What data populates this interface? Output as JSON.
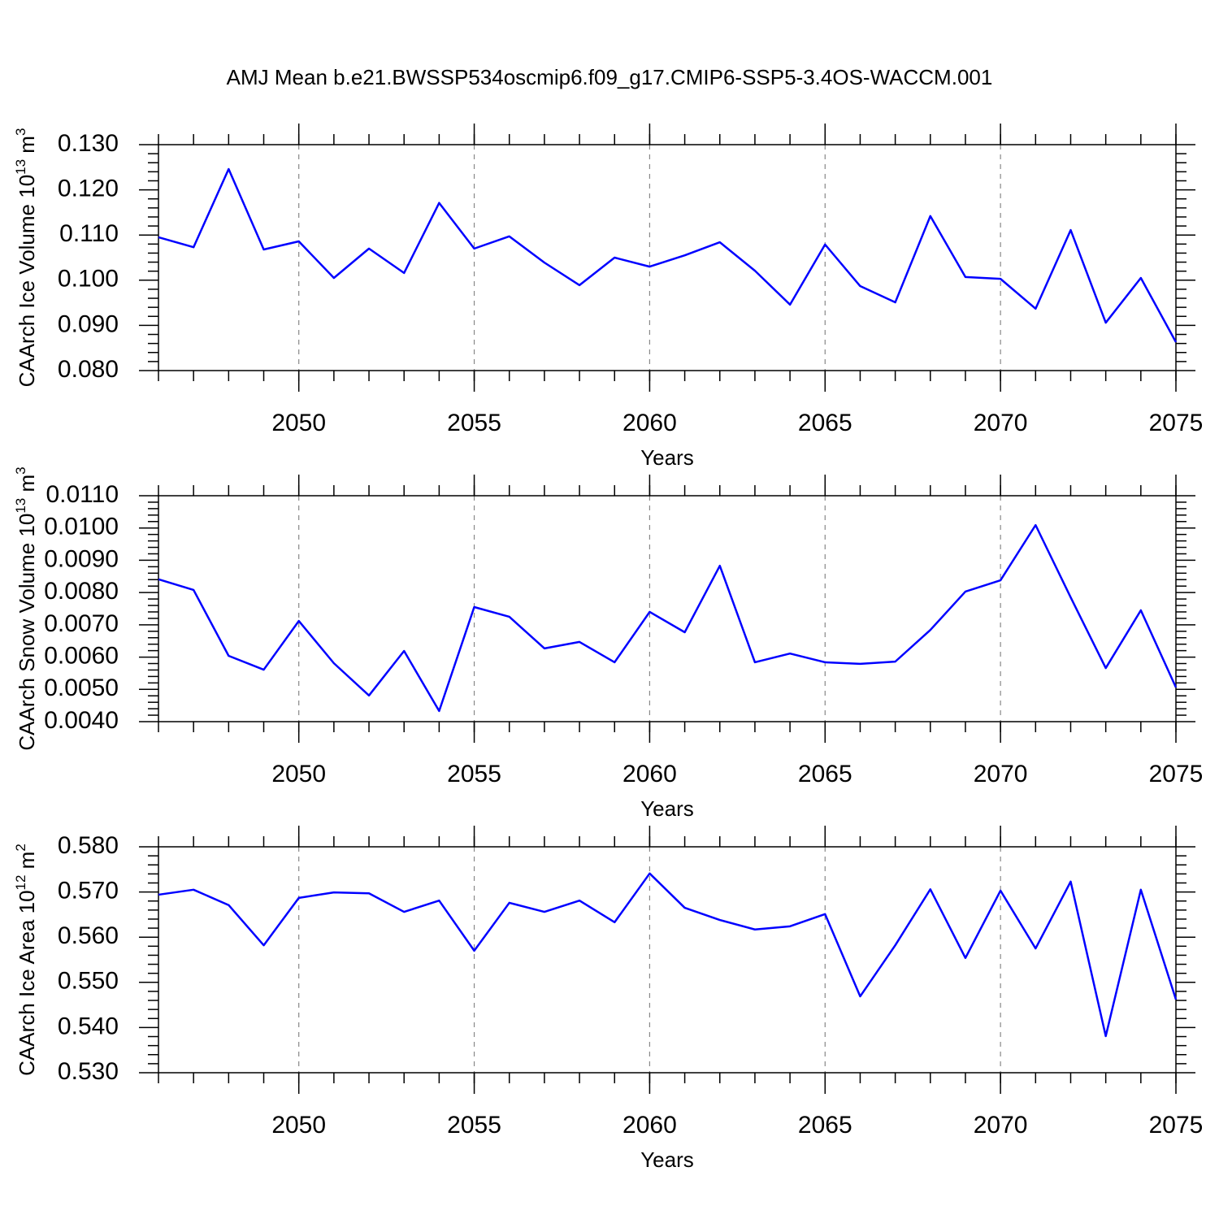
{
  "chart_data": [
    {
      "type": "line",
      "title": "AMJ Mean b.e21.BWSSP534oscmip6.f09_g17.CMIP6-SSP5-3.4OS-WACCM.001",
      "xlabel": "Years",
      "ylabel": [
        "CAArch Ice Volume 10",
        "13",
        " m",
        "3"
      ],
      "x": [
        2046,
        2047,
        2048,
        2049,
        2050,
        2051,
        2052,
        2053,
        2054,
        2055,
        2056,
        2057,
        2058,
        2059,
        2060,
        2061,
        2062,
        2063,
        2064,
        2065,
        2066,
        2067,
        2068,
        2069,
        2070,
        2071,
        2072,
        2073,
        2074,
        2075
      ],
      "values": [
        0.1095,
        0.1073,
        0.1246,
        0.1068,
        0.1086,
        0.1005,
        0.107,
        0.1016,
        0.1171,
        0.107,
        0.1097,
        0.1039,
        0.0989,
        0.105,
        0.103,
        0.1055,
        0.1084,
        0.1021,
        0.0946,
        0.1079,
        0.0987,
        0.0951,
        0.1142,
        0.1007,
        0.1003,
        0.0937,
        0.1111,
        0.0906,
        0.1005,
        0.0863
      ],
      "color": "#0000ff",
      "xlim": [
        2046,
        2075
      ],
      "xticks": [
        2050,
        2055,
        2060,
        2065,
        2070,
        2075
      ],
      "ylim": [
        0.08,
        0.13
      ],
      "yticks": [
        {
          "value": 0.08,
          "label": "0.080"
        },
        {
          "value": 0.09,
          "label": "0.090"
        },
        {
          "value": 0.1,
          "label": "0.100"
        },
        {
          "value": 0.11,
          "label": "0.110"
        },
        {
          "value": 0.12,
          "label": "0.120"
        },
        {
          "value": 0.13,
          "label": "0.130"
        }
      ],
      "grid": "x-dashed"
    },
    {
      "type": "line",
      "xlabel": "Years",
      "ylabel": [
        "CAArch Snow Volume 10",
        "13",
        " m",
        "3"
      ],
      "x": [
        2046,
        2047,
        2048,
        2049,
        2050,
        2051,
        2052,
        2053,
        2054,
        2055,
        2056,
        2057,
        2058,
        2059,
        2060,
        2061,
        2062,
        2063,
        2064,
        2065,
        2066,
        2067,
        2068,
        2069,
        2070,
        2071,
        2072,
        2073,
        2074,
        2075
      ],
      "values": [
        0.00841,
        0.00808,
        0.00604,
        0.00561,
        0.00712,
        0.00581,
        0.00481,
        0.00619,
        0.00433,
        0.00755,
        0.00725,
        0.00627,
        0.00647,
        0.00584,
        0.0074,
        0.00677,
        0.00883,
        0.00584,
        0.00611,
        0.00584,
        0.00579,
        0.00586,
        0.00684,
        0.00803,
        0.00838,
        0.01009,
        0.00785,
        0.00566,
        0.00745,
        0.00506
      ],
      "color": "#0000ff",
      "xlim": [
        2046,
        2075
      ],
      "xticks": [
        2050,
        2055,
        2060,
        2065,
        2070,
        2075
      ],
      "ylim": [
        0.004,
        0.011
      ],
      "yticks": [
        {
          "value": 0.004,
          "label": "0.0040"
        },
        {
          "value": 0.005,
          "label": "0.0050"
        },
        {
          "value": 0.006,
          "label": "0.0060"
        },
        {
          "value": 0.007,
          "label": "0.0070"
        },
        {
          "value": 0.008,
          "label": "0.0080"
        },
        {
          "value": 0.009,
          "label": "0.0090"
        },
        {
          "value": 0.01,
          "label": "0.0100"
        },
        {
          "value": 0.011,
          "label": "0.0110"
        }
      ],
      "grid": "x-dashed"
    },
    {
      "type": "line",
      "xlabel": "Years",
      "ylabel": [
        "CAArch Ice Area 10",
        "12",
        " m",
        "2"
      ],
      "x": [
        2046,
        2047,
        2048,
        2049,
        2050,
        2051,
        2052,
        2053,
        2054,
        2055,
        2056,
        2057,
        2058,
        2059,
        2060,
        2061,
        2062,
        2063,
        2064,
        2065,
        2066,
        2067,
        2068,
        2069,
        2070,
        2071,
        2072,
        2073,
        2074,
        2075
      ],
      "values": [
        0.5694,
        0.5705,
        0.5671,
        0.5582,
        0.5687,
        0.5699,
        0.5697,
        0.5656,
        0.5681,
        0.557,
        0.5676,
        0.5656,
        0.5681,
        0.5633,
        0.5741,
        0.5665,
        0.5638,
        0.5617,
        0.5624,
        0.5651,
        0.5469,
        0.5582,
        0.5706,
        0.5554,
        0.5703,
        0.5575,
        0.5723,
        0.5381,
        0.5705,
        0.5462
      ],
      "color": "#0000ff",
      "xlim": [
        2046,
        2075
      ],
      "xticks": [
        2050,
        2055,
        2060,
        2065,
        2070,
        2075
      ],
      "ylim": [
        0.53,
        0.58
      ],
      "yticks": [
        {
          "value": 0.53,
          "label": "0.530"
        },
        {
          "value": 0.54,
          "label": "0.540"
        },
        {
          "value": 0.55,
          "label": "0.550"
        },
        {
          "value": 0.56,
          "label": "0.560"
        },
        {
          "value": 0.57,
          "label": "0.570"
        },
        {
          "value": 0.58,
          "label": "0.580"
        }
      ],
      "grid": "x-dashed"
    }
  ]
}
